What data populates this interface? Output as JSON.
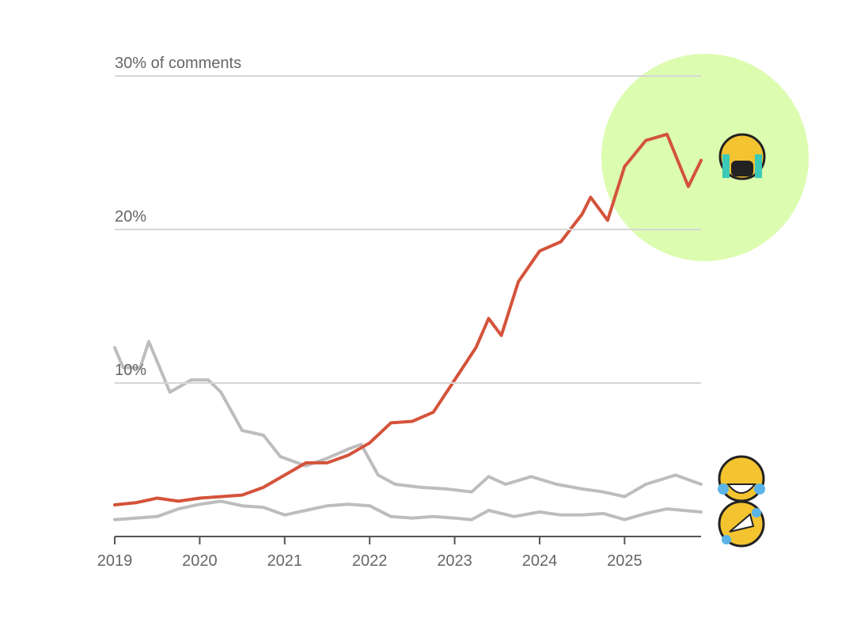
{
  "chart_data": {
    "type": "line",
    "xlim": [
      2019,
      2025.9
    ],
    "xticks": [
      2019,
      2020,
      2021,
      2022,
      2023,
      2024,
      2025
    ],
    "ylim": [
      0,
      30
    ],
    "yticks": [
      {
        "value": 10,
        "label": "10%"
      },
      {
        "value": 20,
        "label": "20%"
      },
      {
        "value": 30,
        "label": "30% of comments"
      }
    ],
    "grid": true,
    "series": [
      {
        "color": "#bdbdbd",
        "x": [
          2019.0,
          2019.1,
          2019.3,
          2019.4,
          2019.65,
          2019.9,
          2020.1,
          2020.25,
          2020.5,
          2020.75,
          2020.95,
          2021.25,
          2021.5,
          2021.75,
          2021.9,
          2022.1,
          2022.3,
          2022.6,
          2022.9,
          2023.2,
          2023.4,
          2023.6,
          2023.9,
          2024.2,
          2024.5,
          2024.75,
          2025.0,
          2025.25,
          2025.6,
          2025.9
        ],
        "values": [
          12.3,
          11.0,
          11.0,
          12.7,
          9.4,
          10.2,
          10.2,
          9.4,
          6.9,
          6.6,
          5.2,
          4.6,
          5.1,
          5.7,
          6.0,
          4.0,
          3.4,
          3.2,
          3.1,
          2.9,
          3.9,
          3.4,
          3.9,
          3.4,
          3.1,
          2.9,
          2.6,
          3.4,
          4.0,
          3.4
        ]
      },
      {
        "color": "#bdbdbd",
        "x": [
          2019.0,
          2019.5,
          2019.75,
          2020.0,
          2020.25,
          2020.5,
          2020.75,
          2021.0,
          2021.25,
          2021.5,
          2021.75,
          2022.0,
          2022.25,
          2022.5,
          2022.75,
          2023.0,
          2023.2,
          2023.4,
          2023.7,
          2024.0,
          2024.25,
          2024.5,
          2024.75,
          2025.0,
          2025.25,
          2025.5,
          2025.9
        ],
        "values": [
          1.1,
          1.3,
          1.8,
          2.1,
          2.3,
          2.0,
          1.9,
          1.4,
          1.7,
          2.0,
          2.1,
          2.0,
          1.3,
          1.2,
          1.3,
          1.2,
          1.1,
          1.7,
          1.3,
          1.6,
          1.4,
          1.4,
          1.5,
          1.1,
          1.5,
          1.8,
          1.6
        ]
      },
      {
        "color": "#d4533a",
        "x": [
          2019.0,
          2019.25,
          2019.5,
          2019.75,
          2020.0,
          2020.25,
          2020.5,
          2020.75,
          2021.0,
          2021.25,
          2021.5,
          2021.75,
          2022.0,
          2022.25,
          2022.5,
          2022.75,
          2023.0,
          2023.25,
          2023.4,
          2023.55,
          2023.75,
          2024.0,
          2024.25,
          2024.5,
          2024.6,
          2024.8,
          2025.0,
          2025.25,
          2025.5,
          2025.75,
          2025.9
        ],
        "values": [
          2.06,
          2.2,
          2.5,
          2.3,
          2.5,
          2.6,
          2.7,
          3.2,
          4.0,
          4.8,
          4.8,
          5.3,
          6.1,
          7.4,
          7.5,
          8.1,
          10.2,
          12.3,
          14.2,
          13.1,
          16.6,
          18.6,
          19.2,
          21.0,
          22.1,
          20.6,
          24.1,
          25.8,
          26.2,
          22.8,
          24.5
        ]
      }
    ]
  }
}
